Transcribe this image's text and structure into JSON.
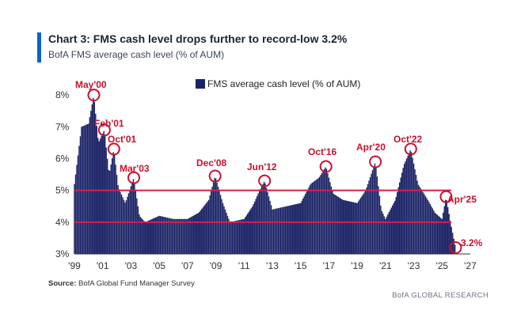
{
  "header": {
    "title": "Chart 3: FMS cash level drops further to record-low 3.2%",
    "subtitle": "BofA FMS average cash level (% of AUM)"
  },
  "footer": {
    "source_label": "Source:",
    "source_text": "BofA Global Fund Manager Survey",
    "brand": "BofA GLOBAL RESEARCH"
  },
  "colors": {
    "bars": "#1b2366",
    "reference_lines": "#d81e4a",
    "annotation": "#c8102e",
    "accent": "#0a63c9"
  },
  "chart_data": {
    "type": "bar",
    "x_unit": "year",
    "xlim": [
      1999,
      2027
    ],
    "ylim": [
      3,
      8.5
    ],
    "x_ticks": [
      "'99",
      "'01",
      "'03",
      "'05",
      "'07",
      "'09",
      "'11",
      "'13",
      "'15",
      "'17",
      "'19",
      "'21",
      "'23",
      "'25",
      "'27"
    ],
    "y_ticks": [
      "3%",
      "4%",
      "5%",
      "6%",
      "7%",
      "8%"
    ],
    "legend": "FMS average cash level (% of AUM)",
    "legend_position": "top-center",
    "reference_lines": [
      {
        "y": 5.0
      },
      {
        "y": 4.0
      }
    ],
    "annotations": [
      {
        "label": "May'00",
        "x": 2000.37,
        "y": 8.0
      },
      {
        "label": "Feb'01",
        "x": 2001.12,
        "y": 6.9
      },
      {
        "label": "Oct'01",
        "x": 2001.79,
        "y": 6.3
      },
      {
        "label": "Mar'03",
        "x": 2003.2,
        "y": 5.4
      },
      {
        "label": "Dec'08",
        "x": 2008.95,
        "y": 5.45
      },
      {
        "label": "Jun'12",
        "x": 2012.45,
        "y": 5.3
      },
      {
        "label": "Oct'16",
        "x": 2016.79,
        "y": 5.75
      },
      {
        "label": "Apr'20",
        "x": 2020.29,
        "y": 5.9
      },
      {
        "label": "Oct'22",
        "x": 2022.79,
        "y": 6.3
      },
      {
        "label": "Apr'25",
        "x": 2025.29,
        "y": 4.8
      },
      {
        "label": "3.2%",
        "x": 2025.96,
        "y": 3.2
      }
    ],
    "series": [
      {
        "name": "FMS average cash level (% of AUM)",
        "points": [
          [
            1999.0,
            5.2
          ],
          [
            1999.5,
            7.0
          ],
          [
            2000.0,
            7.1
          ],
          [
            2000.37,
            8.0
          ],
          [
            2000.7,
            6.5
          ],
          [
            2001.12,
            6.9
          ],
          [
            2001.45,
            5.5
          ],
          [
            2001.79,
            6.3
          ],
          [
            2002.1,
            5.1
          ],
          [
            2002.6,
            4.6
          ],
          [
            2003.2,
            5.4
          ],
          [
            2003.6,
            4.2
          ],
          [
            2004.0,
            4.0
          ],
          [
            2005.0,
            4.2
          ],
          [
            2006.0,
            4.1
          ],
          [
            2007.0,
            4.1
          ],
          [
            2007.8,
            4.3
          ],
          [
            2008.5,
            4.7
          ],
          [
            2008.95,
            5.45
          ],
          [
            2009.5,
            4.6
          ],
          [
            2010.0,
            4.0
          ],
          [
            2011.0,
            4.1
          ],
          [
            2011.6,
            4.5
          ],
          [
            2012.0,
            4.9
          ],
          [
            2012.45,
            5.3
          ],
          [
            2013.0,
            4.4
          ],
          [
            2014.0,
            4.5
          ],
          [
            2015.0,
            4.6
          ],
          [
            2015.7,
            5.2
          ],
          [
            2016.3,
            5.4
          ],
          [
            2016.79,
            5.75
          ],
          [
            2017.3,
            4.9
          ],
          [
            2018.0,
            4.7
          ],
          [
            2019.0,
            4.6
          ],
          [
            2019.6,
            5.0
          ],
          [
            2020.29,
            5.9
          ],
          [
            2020.7,
            4.4
          ],
          [
            2021.0,
            4.1
          ],
          [
            2021.7,
            4.7
          ],
          [
            2022.3,
            5.8
          ],
          [
            2022.79,
            6.3
          ],
          [
            2023.3,
            5.2
          ],
          [
            2024.0,
            4.7
          ],
          [
            2024.5,
            4.3
          ],
          [
            2025.0,
            4.1
          ],
          [
            2025.29,
            4.8
          ],
          [
            2025.6,
            4.0
          ],
          [
            2025.96,
            3.2
          ]
        ]
      }
    ]
  }
}
